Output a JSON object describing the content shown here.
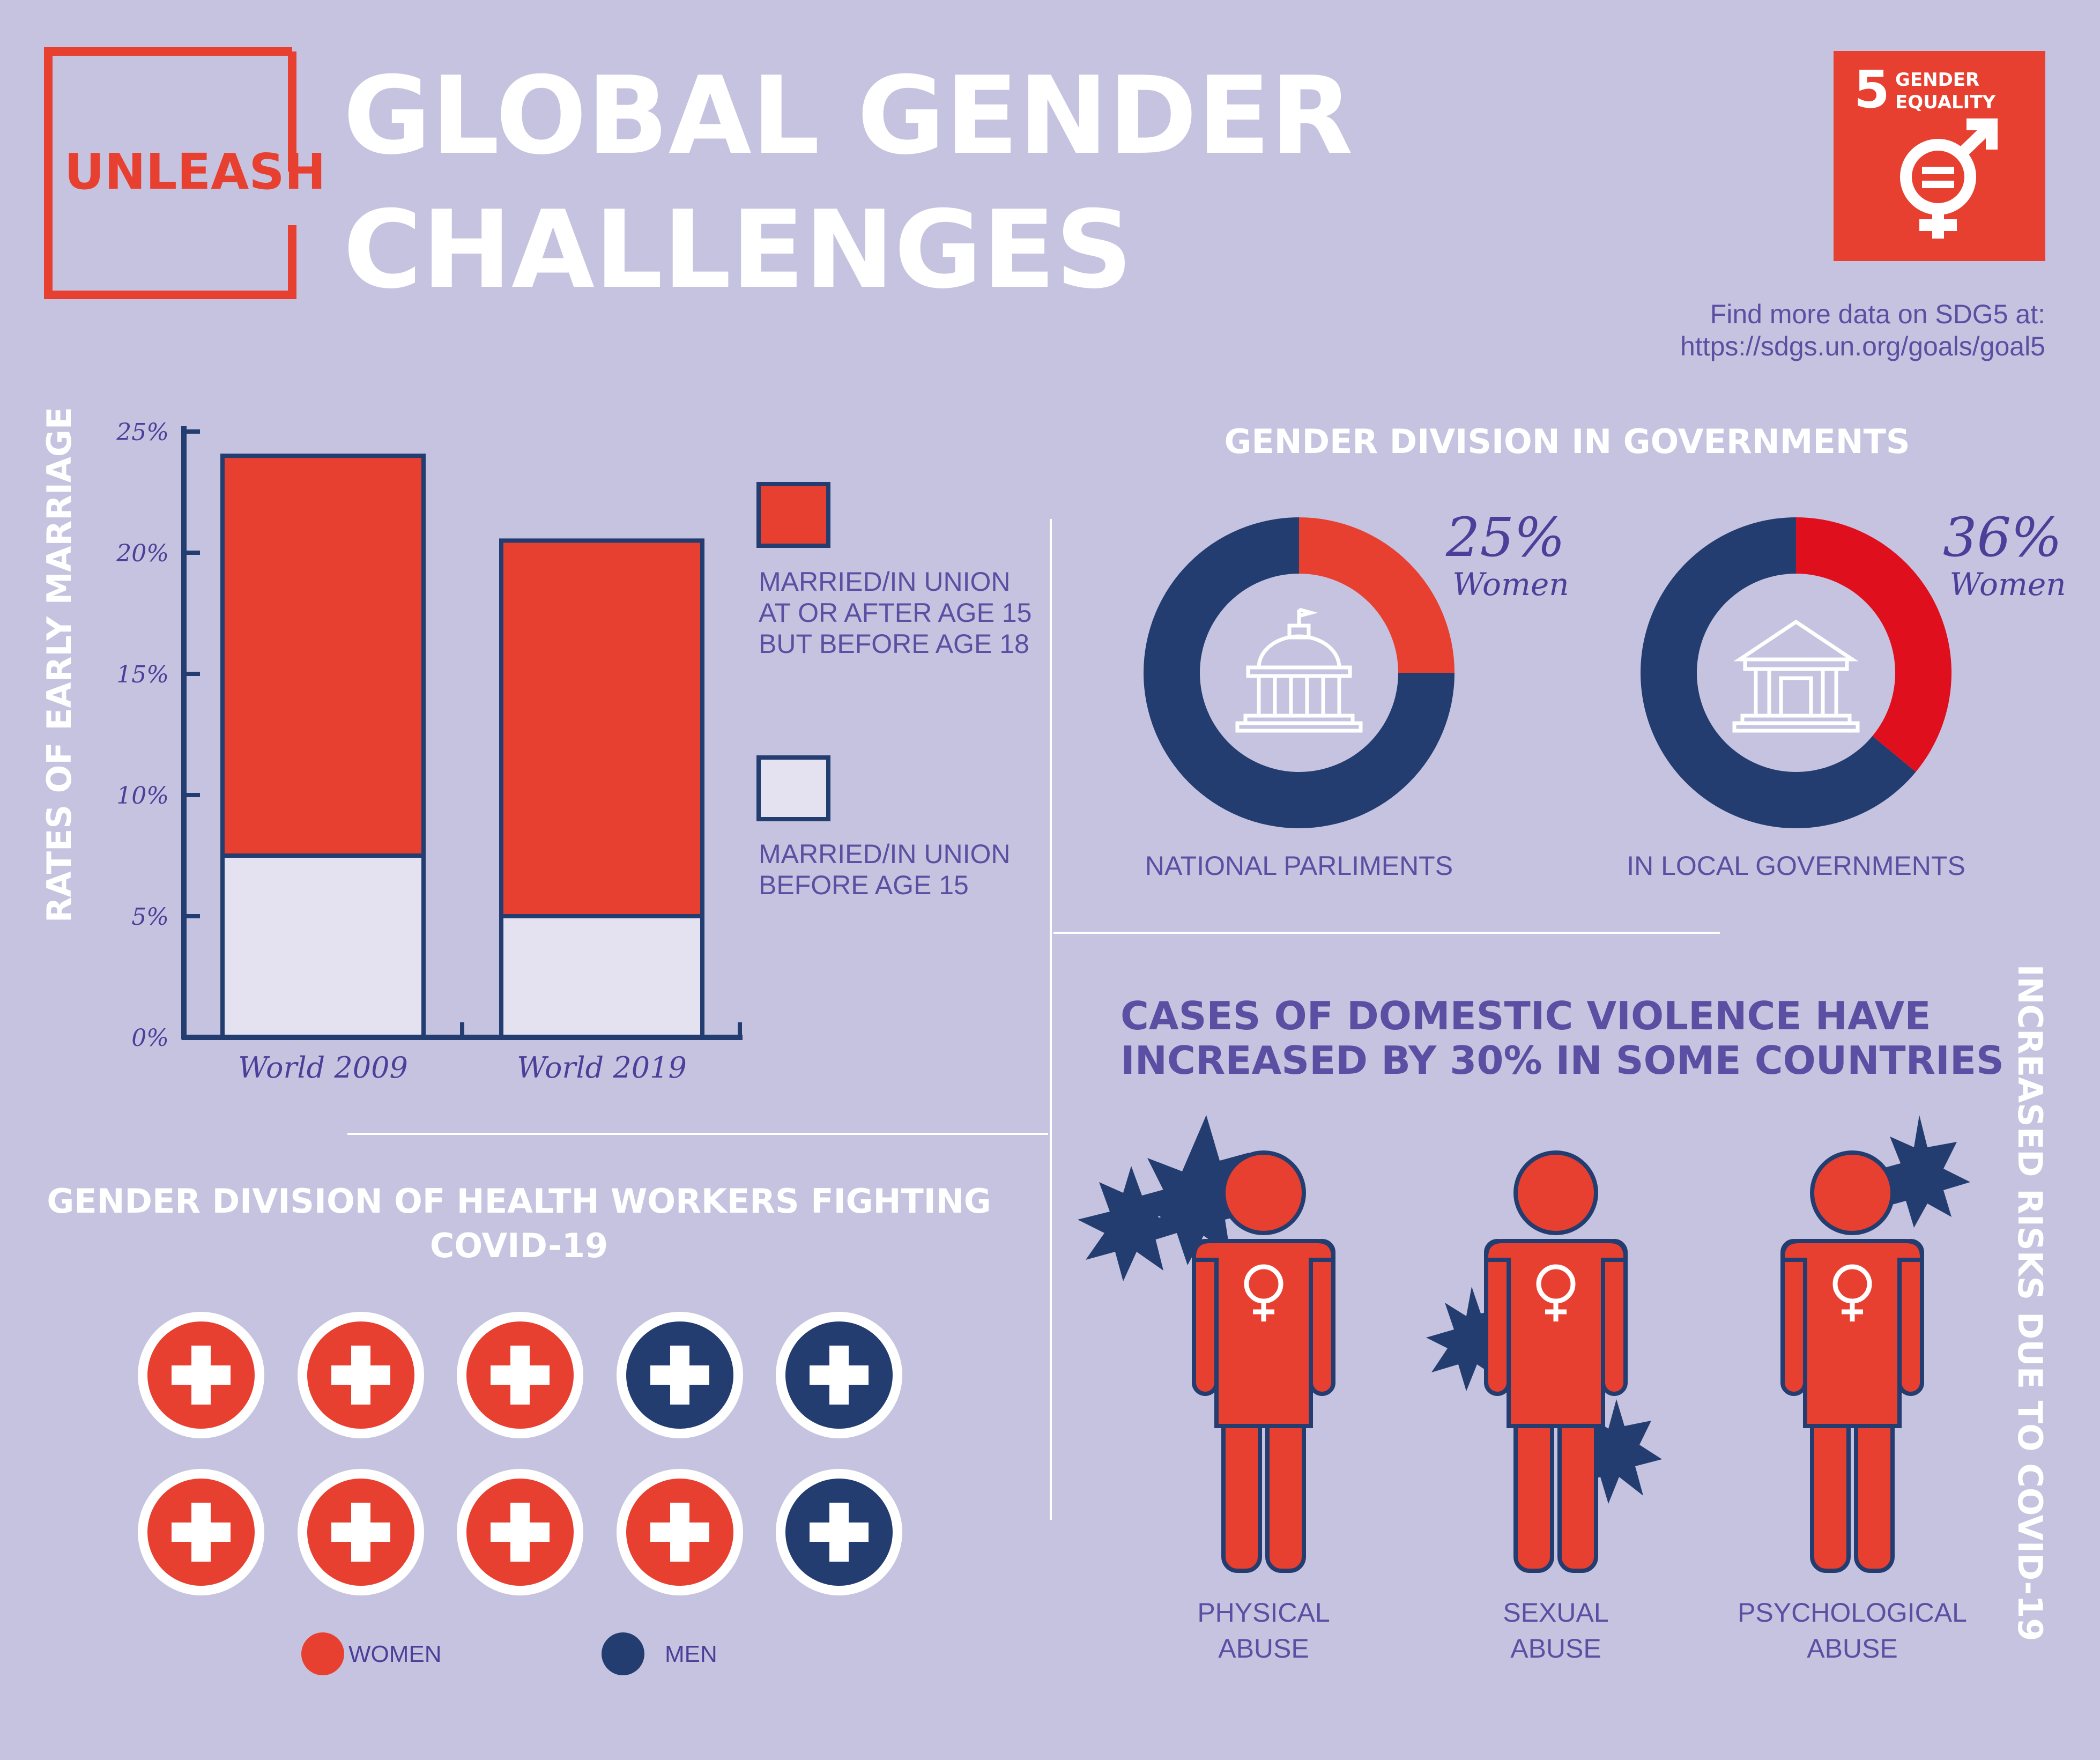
{
  "header": {
    "logo_text": "UNLEASH",
    "title_line1": "GLOBAL GENDER",
    "title_line2": "CHALLENGES",
    "sdg_number": "5",
    "sdg_line1": "GENDER",
    "sdg_line2": "EQUALITY",
    "link_line1": "Find more data on SDG5 at:",
    "link_line2": "https://sdgs.un.org/goals/goal5"
  },
  "colors": {
    "background": "#c5c3df",
    "red": "#e84030",
    "navy": "#233d70",
    "light": "#e4e1f1",
    "purple": "#5a4fa2",
    "bright_red": "#e00f1e"
  },
  "chart_data": [
    {
      "type": "bar",
      "stacked": true,
      "ylabel": "RATES OF EARLY MARRIAGE",
      "categories": [
        "World 2009",
        "World 2019"
      ],
      "ylim": [
        0,
        25
      ],
      "yticks": [
        "0%",
        "5%",
        "10%",
        "15%",
        "20%",
        "25%"
      ],
      "series": [
        {
          "name": "MARRIED/IN UNION BEFORE AGE 15",
          "values": [
            7.5,
            5
          ],
          "color": "#e4e1f1"
        },
        {
          "name": "MARRIED/IN UNION AT OR AFTER AGE 15 BUT BEFORE AGE 18",
          "values": [
            16.5,
            15.5
          ],
          "color": "#e84030"
        }
      ],
      "legend": [
        {
          "line1": "MARRIED/IN UNION",
          "line2": "AT OR AFTER AGE 15",
          "line3": "BUT BEFORE AGE 18"
        },
        {
          "line1": "MARRIED/IN UNION",
          "line2": "BEFORE AGE 15"
        }
      ]
    },
    {
      "type": "pie",
      "title": "GENDER DIVISION IN GOVERNMENTS",
      "donuts": [
        {
          "label": "NATIONAL PARLIMENTS",
          "percent_label": "25%",
          "women_label": "Women",
          "women_fraction": 0.25,
          "women_color": "#e84030",
          "icon": "capitol-building-icon"
        },
        {
          "label": "IN LOCAL GOVERNMENTS",
          "percent_label": "36%",
          "women_label": "Women",
          "women_fraction": 0.36,
          "women_color": "#e00f1e",
          "icon": "government-building-icon"
        }
      ]
    },
    {
      "type": "table",
      "title_line1": "GENDER DIVISION OF HEALTH WORKERS FIGHTING",
      "title_line2": "COVID-19",
      "rows": [
        [
          "women",
          "women",
          "women",
          "men",
          "men"
        ],
        [
          "women",
          "women",
          "women",
          "women",
          "men"
        ]
      ],
      "legend": {
        "women": "WOMEN",
        "men": "MEN"
      }
    }
  ],
  "violence": {
    "heading_line1": "CASES OF DOMESTIC VIOLENCE HAVE",
    "heading_line2": "INCREASED BY 30% IN SOME COUNTRIES",
    "side_label": "INCREASED RISKS DUE TO COVID-19",
    "figures": [
      {
        "line1": "PHYSICAL",
        "line2": "ABUSE"
      },
      {
        "line1": "SEXUAL",
        "line2": "ABUSE"
      },
      {
        "line1": "PSYCHOLOGICAL",
        "line2": "ABUSE"
      }
    ]
  }
}
